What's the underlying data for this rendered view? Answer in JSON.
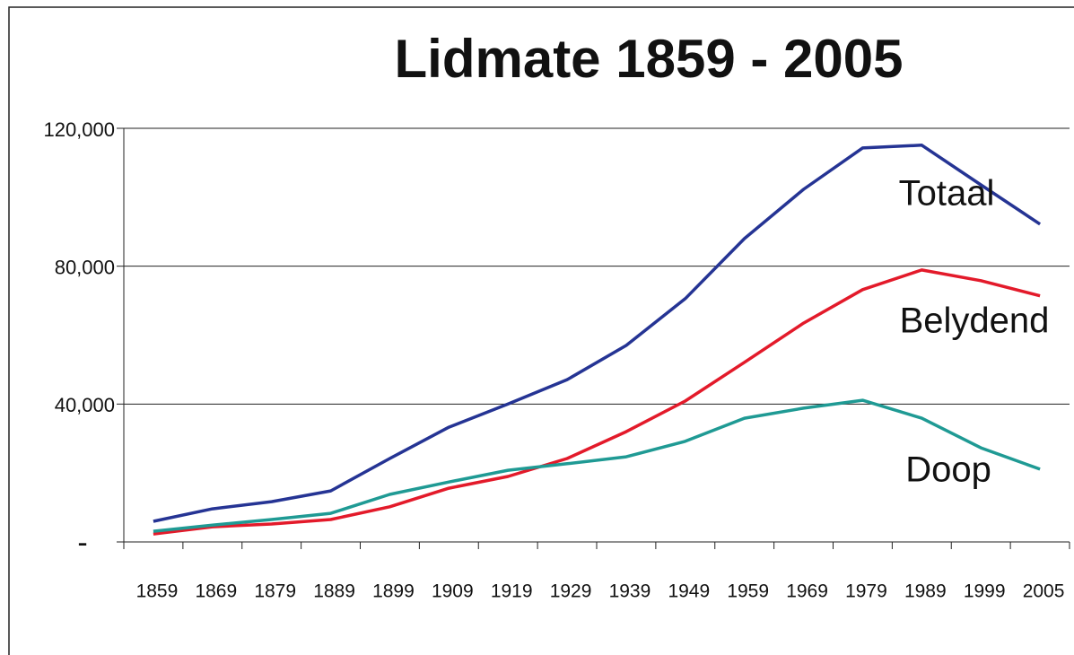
{
  "chart_data": {
    "type": "line",
    "title": "Lidmate 1859 - 2005",
    "categories": [
      "1859",
      "1869",
      "1879",
      "1889",
      "1899",
      "1909",
      "1919",
      "1929",
      "1939",
      "1949",
      "1959",
      "1969",
      "1979",
      "1989",
      "1999",
      "2005"
    ],
    "series": [
      {
        "name": "Totaal",
        "color": "#253494",
        "values": [
          6000,
          9600,
          11700,
          14800,
          24200,
          33300,
          40000,
          47100,
          57000,
          70600,
          88000,
          102300,
          114300,
          115100,
          103600,
          92200
        ]
      },
      {
        "name": "Belydend",
        "color": "#e31a2a",
        "values": [
          2300,
          4400,
          5200,
          6500,
          10200,
          15600,
          19000,
          24200,
          32000,
          40900,
          52100,
          63500,
          73200,
          78900,
          75800,
          71400
        ]
      },
      {
        "name": "Doop",
        "color": "#1f9a94",
        "values": [
          3100,
          4900,
          6500,
          8300,
          13800,
          17400,
          20800,
          22700,
          24700,
          29200,
          35900,
          38800,
          41100,
          35900,
          27300,
          21100
        ]
      }
    ],
    "ylim": [
      0,
      120000
    ],
    "yticks": [
      {
        "value": 0,
        "label": "-"
      },
      {
        "value": 40000,
        "label": "40,000"
      },
      {
        "value": 80000,
        "label": "80,000"
      },
      {
        "value": 120000,
        "label": "120,000"
      }
    ],
    "grid": true
  }
}
